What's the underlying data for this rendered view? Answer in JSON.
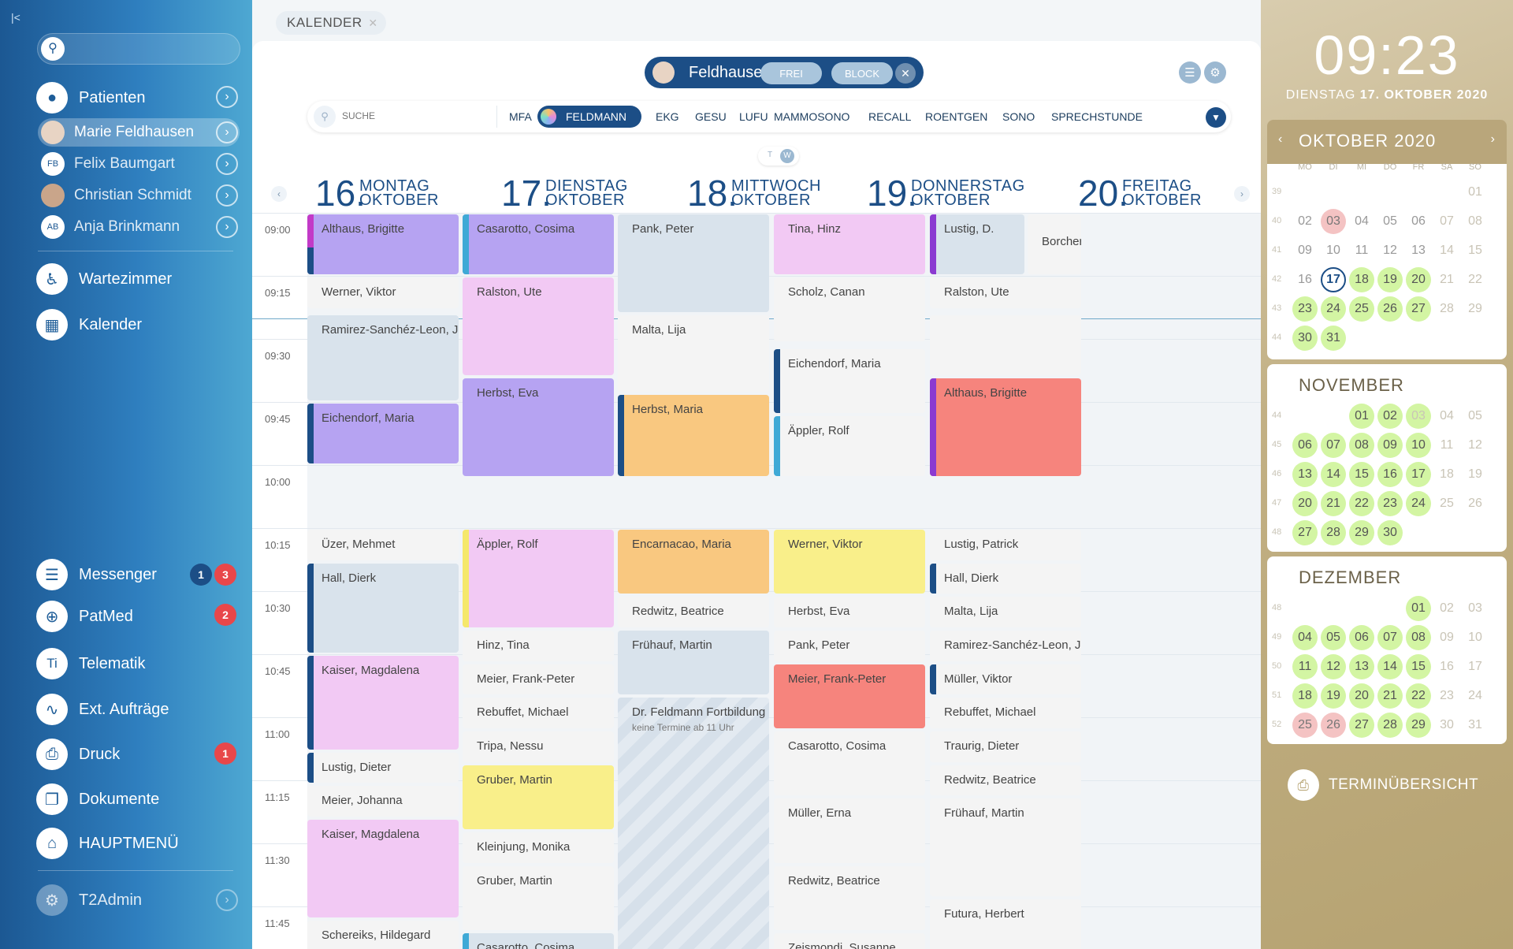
{
  "sidebar": {
    "collapse": "|<",
    "nav": [
      {
        "label": "Patienten",
        "icon": "person-icon"
      },
      {
        "label": "Wartezimmer",
        "icon": "waiting-icon"
      },
      {
        "label": "Kalender",
        "icon": "calendar-icon"
      },
      {
        "label": "Messenger",
        "icon": "chat-icon",
        "badges": [
          "1",
          "3"
        ]
      },
      {
        "label": "PatMed",
        "icon": "plus-icon",
        "badges": [
          "2"
        ]
      },
      {
        "label": "Telematik",
        "icon": "ti-icon"
      },
      {
        "label": "Ext. Aufträge",
        "icon": "pulse-icon"
      },
      {
        "label": "Druck",
        "icon": "print-icon",
        "badges": [
          "1"
        ]
      },
      {
        "label": "Dokumente",
        "icon": "documents-icon"
      },
      {
        "label": "HAUPTMENÜ",
        "icon": "home-icon"
      },
      {
        "label": "T2Admin",
        "icon": "admin-icon"
      }
    ],
    "patients": [
      {
        "label": "Marie Feldhausen",
        "initials": ""
      },
      {
        "label": "Felix Baumgart",
        "initials": "FB"
      },
      {
        "label": "Christian Schmidt",
        "initials": ""
      },
      {
        "label": "Anja Brinkmann",
        "initials": "AB"
      }
    ]
  },
  "main": {
    "tab": "KALENDER",
    "doctor": "Feldhausen, Marie",
    "btn_frei": "FREI",
    "btn_block": "BLOCK",
    "search_placeholder": "SUCHE",
    "filters": [
      "MFA",
      "FELDMANN",
      "EKG",
      "GESU",
      "LUFU",
      "MAMMOSONO",
      "RECALL",
      "ROENTGEN",
      "SONO",
      "SPRECHSTUNDE"
    ],
    "view_t": "T",
    "view_w": "W",
    "days": [
      {
        "num": "16.",
        "weekday": "MONTAG",
        "month": "OKTOBER"
      },
      {
        "num": "17.",
        "weekday": "DIENSTAG",
        "month": "OKTOBER"
      },
      {
        "num": "18.",
        "weekday": "MITTWOCH",
        "month": "OKTOBER"
      },
      {
        "num": "19.",
        "weekday": "DONNERSTAG",
        "month": "OKTOBER"
      },
      {
        "num": "20.",
        "weekday": "FREITAG",
        "month": "OKTOBER"
      }
    ],
    "times": [
      "09:00",
      "09:15",
      "09:30",
      "09:45",
      "10:00",
      "10:15",
      "10:30",
      "10:45",
      "11:00",
      "11:15",
      "11:30",
      "11:45"
    ],
    "appointments": [
      {
        "day": 0,
        "start": 0,
        "dur": 15,
        "name": "Althaus, Brigitte",
        "color": "#b6a3f2",
        "bar": "#c23ac7",
        "bar2": "#1c4e86"
      },
      {
        "day": 0,
        "start": 15,
        "dur": 8,
        "name": "Werner, Viktor",
        "color": "#f4f4f4"
      },
      {
        "day": 0,
        "start": 24,
        "dur": 21,
        "name": "Ramirez-Sanchéz-Leon, J.",
        "color": "#d9e3ec"
      },
      {
        "day": 0,
        "start": 45,
        "dur": 15,
        "name": "Eichendorf, Maria",
        "color": "#b6a3f2",
        "bar": "#1c4e86"
      },
      {
        "day": 0,
        "start": 75,
        "dur": 8,
        "name": "Üzer, Mehmet",
        "color": "#f4f4f4"
      },
      {
        "day": 0,
        "start": 83,
        "dur": 22,
        "name": "Hall, Dierk",
        "color": "#d9e3ec",
        "bar": "#1c4e86"
      },
      {
        "day": 0,
        "start": 105,
        "dur": 23,
        "name": "Kaiser, Magdalena",
        "color": "#f2c9f4",
        "bar": "#1c4e86"
      },
      {
        "day": 0,
        "start": 128,
        "dur": 8,
        "name": "Lustig, Dieter",
        "color": "#f4f4f4",
        "bar": "#1c4e86"
      },
      {
        "day": 0,
        "start": 136,
        "dur": 8,
        "name": "Meier, Johanna",
        "color": "#f4f4f4"
      },
      {
        "day": 0,
        "start": 144,
        "dur": 24,
        "name": "Kaiser, Magdalena",
        "color": "#f2c9f4"
      },
      {
        "day": 0,
        "start": 168,
        "dur": 8,
        "name": "Schereiks, Hildegard",
        "color": "#f4f4f4"
      },
      {
        "day": 1,
        "start": 0,
        "dur": 15,
        "name": "Casarotto, Cosima",
        "color": "#b6a3f2",
        "bar": "#3fa9d6"
      },
      {
        "day": 1,
        "start": 15,
        "dur": 24,
        "name": "Ralston, Ute",
        "color": "#f2c9f4"
      },
      {
        "day": 1,
        "start": 39,
        "dur": 24,
        "name": "Herbst, Eva",
        "color": "#b6a3f2"
      },
      {
        "day": 1,
        "start": 75,
        "dur": 24,
        "name": "Äppler, Rolf",
        "color": "#f2c9f4",
        "bar": "#f5e86b"
      },
      {
        "day": 1,
        "start": 99,
        "dur": 8,
        "name": "Hinz, Tina",
        "color": "#f4f4f4"
      },
      {
        "day": 1,
        "start": 107,
        "dur": 8,
        "name": "Meier, Frank-Peter",
        "color": "#f4f4f4"
      },
      {
        "day": 1,
        "start": 115,
        "dur": 8,
        "name": "Rebuffet, Michael",
        "color": "#f4f4f4"
      },
      {
        "day": 1,
        "start": 123,
        "dur": 8,
        "name": "Tripa, Nessu",
        "color": "#f4f4f4"
      },
      {
        "day": 1,
        "start": 131,
        "dur": 16,
        "name": "Gruber, Martin",
        "color": "#f9ef8a"
      },
      {
        "day": 1,
        "start": 147,
        "dur": 8,
        "name": "Kleinjung, Monika",
        "color": "#f4f4f4"
      },
      {
        "day": 1,
        "start": 155,
        "dur": 16,
        "name": "Gruber, Martin",
        "color": "#f4f4f4"
      },
      {
        "day": 1,
        "start": 171,
        "dur": 8,
        "name": "Casarotto, Cosima",
        "color": "#d9e3ec",
        "bar": "#3fa9d6"
      },
      {
        "day": 2,
        "start": 0,
        "dur": 24,
        "name": "Pank, Peter",
        "color": "#d9e3ec"
      },
      {
        "day": 2,
        "start": 24,
        "dur": 19,
        "name": "Malta, Lija",
        "color": "#f4f4f4"
      },
      {
        "day": 2,
        "start": 43,
        "dur": 20,
        "name": "Herbst, Maria",
        "color": "#f9c880",
        "bar": "#1c4e86"
      },
      {
        "day": 2,
        "start": 75,
        "dur": 16,
        "name": "Encarnacao, Maria",
        "color": "#f9c880"
      },
      {
        "day": 2,
        "start": 91,
        "dur": 8,
        "name": "Redwitz, Beatrice",
        "color": "#f4f4f4"
      },
      {
        "day": 2,
        "start": 99,
        "dur": 16,
        "name": "Frühauf, Martin",
        "color": "#d9e3ec"
      },
      {
        "day": 2,
        "start": 115,
        "dur": 65,
        "name": "Dr. Feldmann Fortbildung",
        "note": "keine Termine ab 11 Uhr",
        "hatch": true
      },
      {
        "day": 3,
        "start": 0,
        "dur": 15,
        "name": "Tina, Hinz",
        "color": "#f2c9f4"
      },
      {
        "day": 3,
        "start": 15,
        "dur": 16,
        "name": "Scholz, Canan",
        "color": "#f4f4f4"
      },
      {
        "day": 3,
        "start": 32,
        "dur": 16,
        "name": "Eichendorf, Maria",
        "color": "#f4f4f4",
        "bar": "#1c4e86"
      },
      {
        "day": 3,
        "start": 48,
        "dur": 15,
        "name": "Äppler, Rolf",
        "color": "#f4f4f4",
        "bar": "#3fa9d6"
      },
      {
        "day": 3,
        "start": 75,
        "dur": 16,
        "name": "Werner, Viktor",
        "color": "#f9ef8a"
      },
      {
        "day": 3,
        "start": 91,
        "dur": 8,
        "name": "Herbst, Eva",
        "color": "#f4f4f4"
      },
      {
        "day": 3,
        "start": 99,
        "dur": 8,
        "name": "Pank, Peter",
        "color": "#f4f4f4"
      },
      {
        "day": 3,
        "start": 107,
        "dur": 16,
        "name": "Meier, Frank-Peter",
        "color": "#f6847d"
      },
      {
        "day": 3,
        "start": 123,
        "dur": 16,
        "name": "Casarotto, Cosima",
        "color": "#f4f4f4"
      },
      {
        "day": 3,
        "start": 139,
        "dur": 16,
        "name": "Müller, Erna",
        "color": "#f4f4f4"
      },
      {
        "day": 3,
        "start": 155,
        "dur": 16,
        "name": "Redwitz, Beatrice",
        "color": "#f4f4f4"
      },
      {
        "day": 3,
        "start": 171,
        "dur": 8,
        "name": "Zeismondi, Susanne",
        "color": "#f4f4f4"
      },
      {
        "day": 4,
        "start": 0,
        "dur": 15,
        "name": "Lustig, D.",
        "color": "#d9e3ec",
        "bar": "#8b3ad1",
        "half": "left"
      },
      {
        "day": 4,
        "start": 0,
        "dur": 15,
        "name": "Borchert, P.",
        "color": "#f4f4f4",
        "half": "right"
      },
      {
        "day": 4,
        "start": 15,
        "dur": 8,
        "name": "Ralston, Ute",
        "color": "#f4f4f4"
      },
      {
        "day": 4,
        "start": 24,
        "dur": 15,
        "name": "",
        "color": "#f4f4f4"
      },
      {
        "day": 4,
        "start": 39,
        "dur": 24,
        "name": "Althaus, Brigitte",
        "color": "#f6847d",
        "bar": "#8b3ad1"
      },
      {
        "day": 4,
        "start": 75,
        "dur": 8,
        "name": "Lustig, Patrick",
        "color": "#f4f4f4"
      },
      {
        "day": 4,
        "start": 83,
        "dur": 8,
        "name": "Hall, Dierk",
        "color": "#f4f4f4",
        "bar": "#1c4e86"
      },
      {
        "day": 4,
        "start": 91,
        "dur": 8,
        "name": "Malta, Lija",
        "color": "#f4f4f4"
      },
      {
        "day": 4,
        "start": 99,
        "dur": 8,
        "name": "Ramirez-Sanchéz-Leon, J.",
        "color": "#f4f4f4"
      },
      {
        "day": 4,
        "start": 107,
        "dur": 8,
        "name": "Müller, Viktor",
        "color": "#f4f4f4",
        "bar": "#1c4e86"
      },
      {
        "day": 4,
        "start": 115,
        "dur": 8,
        "name": "Rebuffet, Michael",
        "color": "#f4f4f4"
      },
      {
        "day": 4,
        "start": 123,
        "dur": 8,
        "name": "Traurig, Dieter",
        "color": "#f4f4f4"
      },
      {
        "day": 4,
        "start": 131,
        "dur": 8,
        "name": "Redwitz, Beatrice",
        "color": "#f4f4f4"
      },
      {
        "day": 4,
        "start": 139,
        "dur": 24,
        "name": "Frühauf, Martin",
        "color": "#f4f4f4"
      },
      {
        "day": 4,
        "start": 163,
        "dur": 17,
        "name": "Futura, Herbert",
        "color": "#f4f4f4"
      }
    ]
  },
  "right": {
    "clock": "09:23",
    "date_prefix": "DIENSTAG ",
    "date_bold": "17. OKTOBER 2020",
    "dow": [
      "MO",
      "DI",
      "MI",
      "DO",
      "FR",
      "SA",
      "SO"
    ],
    "months": [
      {
        "title": "OKTOBER 2020",
        "weeks": [
          "39",
          "40",
          "41",
          "42",
          "43",
          "44"
        ],
        "rows": [
          [
            "",
            "",
            "",
            "",
            "",
            "",
            "01"
          ],
          [
            "02",
            "03",
            "04",
            "05",
            "06",
            "07",
            "08"
          ],
          [
            "09",
            "10",
            "11",
            "12",
            "13",
            "14",
            "15"
          ],
          [
            "16",
            "17",
            "18",
            "19",
            "20",
            "21",
            "22"
          ],
          [
            "23",
            "24",
            "25",
            "26",
            "27",
            "28",
            "29"
          ],
          [
            "30",
            "31",
            "",
            "",
            "",
            "",
            ""
          ]
        ],
        "states": [
          [
            "",
            "",
            "",
            "",
            "",
            "",
            "d"
          ],
          [
            "",
            "r",
            "",
            "",
            "",
            "d",
            "d"
          ],
          [
            "",
            "",
            "",
            "",
            "",
            "d",
            "d"
          ],
          [
            "",
            "t",
            "g",
            "g",
            "g",
            "d",
            "d"
          ],
          [
            "g",
            "g",
            "g",
            "g",
            "g",
            "d",
            "d"
          ],
          [
            "g",
            "g",
            "",
            "",
            "",
            "",
            ""
          ]
        ]
      },
      {
        "title": "NOVEMBER",
        "weeks": [
          "44",
          "45",
          "46",
          "47",
          "48"
        ],
        "rows": [
          [
            "",
            "",
            "01",
            "02",
            "03",
            "04",
            "05"
          ],
          [
            "06",
            "07",
            "08",
            "09",
            "10",
            "11",
            "12"
          ],
          [
            "13",
            "14",
            "15",
            "16",
            "17",
            "18",
            "19"
          ],
          [
            "20",
            "21",
            "22",
            "23",
            "24",
            "25",
            "26"
          ],
          [
            "27",
            "28",
            "29",
            "30",
            "",
            "",
            ""
          ]
        ],
        "states": [
          [
            "",
            "",
            "g",
            "g",
            "gd",
            "d",
            "d"
          ],
          [
            "g",
            "g",
            "g",
            "g",
            "g",
            "d",
            "d"
          ],
          [
            "g",
            "g",
            "g",
            "g",
            "g",
            "d",
            "d"
          ],
          [
            "g",
            "g",
            "g",
            "g",
            "g",
            "d",
            "d"
          ],
          [
            "g",
            "g",
            "g",
            "g",
            "",
            "",
            ""
          ]
        ]
      },
      {
        "title": "DEZEMBER",
        "weeks": [
          "48",
          "49",
          "50",
          "51",
          "52"
        ],
        "rows": [
          [
            "",
            "",
            "",
            "",
            "01",
            "02",
            "03"
          ],
          [
            "04",
            "05",
            "06",
            "07",
            "08",
            "09",
            "10"
          ],
          [
            "11",
            "12",
            "13",
            "14",
            "15",
            "16",
            "17"
          ],
          [
            "18",
            "19",
            "20",
            "21",
            "22",
            "23",
            "24"
          ],
          [
            "25",
            "26",
            "27",
            "28",
            "29",
            "30",
            "31"
          ]
        ],
        "states": [
          [
            "",
            "",
            "",
            "",
            "g",
            "d",
            "d"
          ],
          [
            "g",
            "g",
            "g",
            "g",
            "g",
            "d",
            "d"
          ],
          [
            "g",
            "g",
            "g",
            "g",
            "g",
            "d",
            "d"
          ],
          [
            "g",
            "g",
            "g",
            "g",
            "g",
            "d",
            "d"
          ],
          [
            "r",
            "r",
            "g",
            "g",
            "g",
            "d",
            "d"
          ]
        ]
      }
    ],
    "overview": "TERMINÜBERSICHT"
  }
}
